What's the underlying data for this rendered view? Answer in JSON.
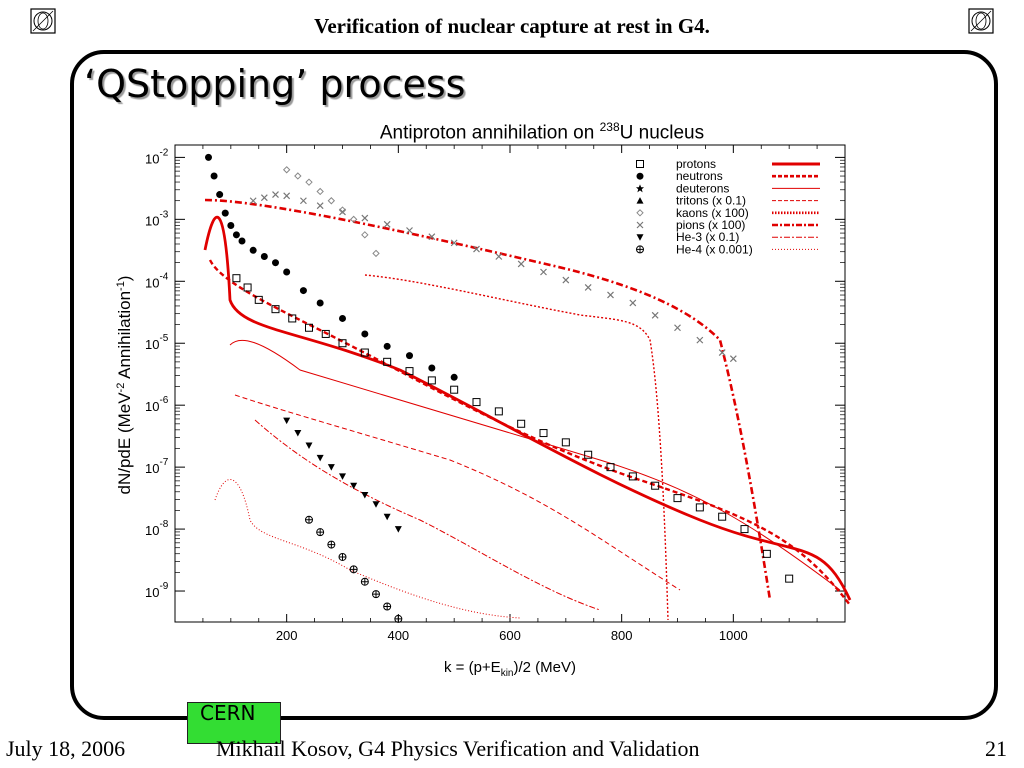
{
  "header": {
    "title": "Verification of nuclear capture at rest in G4.",
    "logo_icon": "cern-logo-icon"
  },
  "slide": {
    "title": "‘QStopping’ process"
  },
  "footer": {
    "date": "July 18, 2006",
    "author": "Mikhail Kosov, G4 Physics Verification and Validation",
    "page": "21",
    "badge": "CERN"
  },
  "chart_data": {
    "type": "scatter",
    "title_pre": "Antiproton annihilation on ",
    "title_sup": "238",
    "title_post": "U nucleus",
    "ylabel_main": "dN/pdE (MeV",
    "ylabel_sup1": "-2",
    "ylabel_mid": " Annihilation",
    "ylabel_sup2": "-1",
    "ylabel_end": ")",
    "xlabel_main": "k = (p+E",
    "xlabel_sub": "kin",
    "xlabel_end": ")/2 (MeV)",
    "xlim": [
      0,
      1200
    ],
    "ylim_log10": [
      -9.5,
      -1.8
    ],
    "y_scale": "log",
    "x_ticks": [
      "200",
      "400",
      "600",
      "800",
      "1000"
    ],
    "y_tick_base": "10",
    "y_tick_exps": [
      "-2",
      "-3",
      "-4",
      "-5",
      "-6",
      "-7",
      "-8",
      "-9"
    ],
    "legend_position": "top-right",
    "legend": [
      {
        "label": "protons",
        "marker": "square",
        "line": "solid-thick",
        "color": "#e00000"
      },
      {
        "label": "neutrons",
        "marker": "circle",
        "line": "dashed-thick",
        "color": "#e00000"
      },
      {
        "label": "deuterons",
        "marker": "star",
        "line": "solid-thin",
        "color": "#e00000"
      },
      {
        "label": "tritons (x 0.1)",
        "marker": "triangle",
        "line": "dashed-thin",
        "color": "#e00000"
      },
      {
        "label": "kaons (x 100)",
        "marker": "diamond",
        "line": "dotted-thick",
        "color": "#e00000"
      },
      {
        "label": "pions (x 100)",
        "marker": "cross",
        "line": "dashdot-thick",
        "color": "#e00000"
      },
      {
        "label": "He-3 (x 0.1)",
        "marker": "down-triangle",
        "line": "dashdot-thin",
        "color": "#e00000"
      },
      {
        "label": "He-4 (x 0.001)",
        "marker": "plus-circle",
        "line": "dotted-thin",
        "color": "#e00000"
      }
    ],
    "series": [
      {
        "name": "protons",
        "marker": "square",
        "x": [
          110,
          130,
          150,
          180,
          210,
          240,
          270,
          300,
          340,
          380,
          420,
          460,
          500,
          540,
          580,
          620,
          660,
          700,
          740,
          780,
          820,
          860,
          900,
          940,
          980,
          1020,
          1060,
          1100
        ],
        "y": [
          -3.95,
          -4.1,
          -4.3,
          -4.45,
          -4.6,
          -4.75,
          -4.85,
          -5.0,
          -5.15,
          -5.3,
          -5.45,
          -5.6,
          -5.75,
          -5.95,
          -6.1,
          -6.3,
          -6.45,
          -6.6,
          -6.8,
          -7.0,
          -7.15,
          -7.3,
          -7.5,
          -7.65,
          -7.8,
          -8.0,
          -8.4,
          -8.8
        ]
      },
      {
        "name": "neutrons",
        "marker": "circle",
        "x": [
          60,
          70,
          80,
          90,
          100,
          110,
          120,
          140,
          160,
          180,
          200,
          230,
          260,
          300,
          340,
          380,
          420,
          460,
          500
        ],
        "y": [
          -2.0,
          -2.3,
          -2.6,
          -2.9,
          -3.1,
          -3.25,
          -3.35,
          -3.5,
          -3.6,
          -3.7,
          -3.85,
          -4.15,
          -4.35,
          -4.6,
          -4.85,
          -5.05,
          -5.2,
          -5.4,
          -5.55
        ]
      },
      {
        "name": "pions (x 100)",
        "marker": "cross",
        "x": [
          140,
          160,
          180,
          200,
          230,
          260,
          300,
          340,
          380,
          420,
          460,
          500,
          540,
          580,
          620,
          660,
          700,
          740,
          780,
          820,
          860,
          900,
          940,
          980,
          1000
        ],
        "y": [
          -2.7,
          -2.65,
          -2.6,
          -2.62,
          -2.7,
          -2.78,
          -2.88,
          -2.98,
          -3.08,
          -3.18,
          -3.28,
          -3.38,
          -3.48,
          -3.6,
          -3.72,
          -3.85,
          -3.98,
          -4.1,
          -4.22,
          -4.35,
          -4.55,
          -4.75,
          -4.95,
          -5.15,
          -5.25
        ]
      },
      {
        "name": "kaons (x 100)",
        "marker": "diamond",
        "x": [
          200,
          220,
          240,
          260,
          280,
          300,
          320,
          340,
          360
        ],
        "y": [
          -2.2,
          -2.3,
          -2.4,
          -2.55,
          -2.7,
          -2.85,
          -3.0,
          -3.25,
          -3.55
        ]
      },
      {
        "name": "He-3 (x 0.1)",
        "marker": "down-triangle",
        "x": [
          200,
          220,
          240,
          260,
          280,
          300,
          320,
          340,
          360,
          380,
          400
        ],
        "y": [
          -6.25,
          -6.45,
          -6.65,
          -6.85,
          -7.0,
          -7.15,
          -7.3,
          -7.45,
          -7.6,
          -7.8,
          -8.0
        ]
      },
      {
        "name": "He-4 (x 0.001)",
        "marker": "plus-circle",
        "x": [
          240,
          260,
          280,
          300,
          320,
          340,
          360,
          380,
          400
        ],
        "y": [
          -7.85,
          -8.05,
          -8.25,
          -8.45,
          -8.65,
          -8.85,
          -9.05,
          -9.25,
          -9.45
        ]
      }
    ]
  }
}
